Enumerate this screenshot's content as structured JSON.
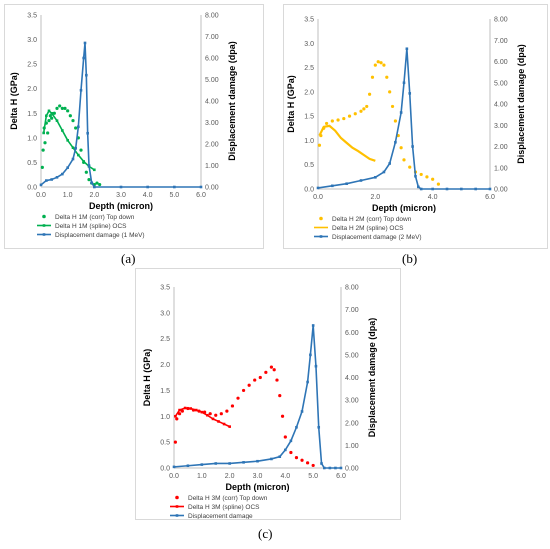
{
  "captions": [
    "(a)",
    "(b)",
    "(c)"
  ],
  "chart_data": [
    {
      "type": "line",
      "panel": "a",
      "xlabel": "Depth (micron)",
      "ylabel": "Delta H (GPa)",
      "y2label": "Displacement damage (dpa)",
      "xlim": [
        0,
        6
      ],
      "ylim": [
        0,
        3.5
      ],
      "y2lim": [
        0,
        8
      ],
      "xticks": [
        "0.0",
        "1.0",
        "2.0",
        "3.0",
        "4.0",
        "5.0",
        "6.0"
      ],
      "yticks": [
        "0.0",
        "0.5",
        "1.0",
        "1.5",
        "2.0",
        "2.5",
        "3.0",
        "3.5"
      ],
      "y2ticks": [
        "0.00",
        "1.00",
        "2.00",
        "3.00",
        "4.00",
        "5.00",
        "6.00",
        "7.00",
        "8.00"
      ],
      "grid": false,
      "legend_position": "bottom-left",
      "series": [
        {
          "name": "Delta H 1M (corr) Top down",
          "axis": "left",
          "style": "dots",
          "color": "#00b050",
          "points": [
            [
              0.05,
              0.4
            ],
            [
              0.08,
              0.75
            ],
            [
              0.12,
              1.2
            ],
            [
              0.15,
              0.9
            ],
            [
              0.2,
              1.3
            ],
            [
              0.25,
              1.1
            ],
            [
              0.3,
              1.35
            ],
            [
              0.35,
              1.45
            ],
            [
              0.4,
              1.4
            ],
            [
              0.5,
              1.5
            ],
            [
              0.6,
              1.6
            ],
            [
              0.7,
              1.65
            ],
            [
              0.8,
              1.6
            ],
            [
              0.9,
              1.6
            ],
            [
              1.0,
              1.55
            ],
            [
              1.1,
              1.45
            ],
            [
              1.2,
              1.35
            ],
            [
              1.3,
              1.2
            ],
            [
              1.4,
              1.0
            ],
            [
              1.5,
              0.75
            ],
            [
              1.6,
              0.5
            ],
            [
              1.7,
              0.3
            ],
            [
              1.8,
              0.15
            ],
            [
              1.9,
              0.08
            ],
            [
              2.0,
              0.05
            ],
            [
              2.1,
              0.08
            ],
            [
              2.2,
              0.05
            ]
          ]
        },
        {
          "name": "Delta H 1M (spline) OCS",
          "axis": "left",
          "style": "line-markers",
          "color": "#00b050",
          "points": [
            [
              0.1,
              1.1
            ],
            [
              0.2,
              1.45
            ],
            [
              0.3,
              1.55
            ],
            [
              0.4,
              1.5
            ],
            [
              0.6,
              1.35
            ],
            [
              0.8,
              1.15
            ],
            [
              1.0,
              0.95
            ],
            [
              1.2,
              0.8
            ],
            [
              1.4,
              0.65
            ],
            [
              1.6,
              0.52
            ],
            [
              1.8,
              0.42
            ],
            [
              2.0,
              0.35
            ]
          ]
        },
        {
          "name": "Displacement damage (1 MeV)",
          "axis": "right",
          "style": "line-markers",
          "color": "#2e75b6",
          "points": [
            [
              0.0,
              0.1
            ],
            [
              0.2,
              0.3
            ],
            [
              0.4,
              0.35
            ],
            [
              0.6,
              0.45
            ],
            [
              0.8,
              0.6
            ],
            [
              1.0,
              0.9
            ],
            [
              1.2,
              1.3
            ],
            [
              1.3,
              1.8
            ],
            [
              1.4,
              2.8
            ],
            [
              1.5,
              4.5
            ],
            [
              1.6,
              6.0
            ],
            [
              1.65,
              6.7
            ],
            [
              1.7,
              5.2
            ],
            [
              1.75,
              2.5
            ],
            [
              1.8,
              1.0
            ],
            [
              1.9,
              0.2
            ],
            [
              2.0,
              0.0
            ],
            [
              3.0,
              0.0
            ],
            [
              4.0,
              0.0
            ],
            [
              5.0,
              0.0
            ],
            [
              6.0,
              0.0
            ]
          ]
        }
      ]
    },
    {
      "type": "line",
      "panel": "b",
      "xlabel": "Depth (micron)",
      "ylabel": "Delta H (GPa)",
      "y2label": "Displacement damage (dpa)",
      "xlim": [
        0,
        6
      ],
      "ylim": [
        0,
        3.5
      ],
      "y2lim": [
        0,
        8
      ],
      "xticks": [
        "0.0",
        "2.0",
        "4.0",
        "6.0"
      ],
      "yticks": [
        "0.0",
        "0.5",
        "1.0",
        "1.5",
        "2.0",
        "2.5",
        "3.0",
        "3.5"
      ],
      "y2ticks": [
        "0.00",
        "1.00",
        "2.00",
        "3.00",
        "4.00",
        "5.00",
        "6.00",
        "7.00",
        "8.00"
      ],
      "grid": false,
      "legend_position": "bottom-left",
      "series": [
        {
          "name": "Delta H 2M (corr)  Top down",
          "axis": "left",
          "style": "dots",
          "color": "#ffc000",
          "points": [
            [
              0.05,
              0.9
            ],
            [
              0.1,
              1.1
            ],
            [
              0.2,
              1.25
            ],
            [
              0.3,
              1.35
            ],
            [
              0.5,
              1.4
            ],
            [
              0.7,
              1.42
            ],
            [
              0.9,
              1.45
            ],
            [
              1.1,
              1.5
            ],
            [
              1.3,
              1.55
            ],
            [
              1.5,
              1.6
            ],
            [
              1.6,
              1.65
            ],
            [
              1.7,
              1.7
            ],
            [
              1.8,
              1.95
            ],
            [
              1.9,
              2.3
            ],
            [
              2.0,
              2.55
            ],
            [
              2.1,
              2.62
            ],
            [
              2.2,
              2.6
            ],
            [
              2.3,
              2.55
            ],
            [
              2.4,
              2.3
            ],
            [
              2.5,
              2.0
            ],
            [
              2.6,
              1.7
            ],
            [
              2.7,
              1.4
            ],
            [
              2.8,
              1.1
            ],
            [
              2.9,
              0.85
            ],
            [
              3.0,
              0.6
            ],
            [
              3.2,
              0.45
            ],
            [
              3.4,
              0.35
            ],
            [
              3.6,
              0.3
            ],
            [
              3.8,
              0.25
            ],
            [
              4.0,
              0.2
            ],
            [
              4.2,
              0.1
            ]
          ]
        },
        {
          "name": "Delta H 2M (spline)  OCS",
          "axis": "left",
          "style": "line",
          "color": "#ffc000",
          "points": [
            [
              0.05,
              1.1
            ],
            [
              0.2,
              1.28
            ],
            [
              0.4,
              1.3
            ],
            [
              0.6,
              1.2
            ],
            [
              0.8,
              1.05
            ],
            [
              1.0,
              0.95
            ],
            [
              1.2,
              0.85
            ],
            [
              1.4,
              0.78
            ],
            [
              1.6,
              0.7
            ],
            [
              1.8,
              0.62
            ],
            [
              2.0,
              0.58
            ]
          ]
        },
        {
          "name": "Displacement damage (2 MeV)",
          "axis": "right",
          "style": "line-markers",
          "color": "#2e75b6",
          "points": [
            [
              0.0,
              0.05
            ],
            [
              0.5,
              0.15
            ],
            [
              1.0,
              0.25
            ],
            [
              1.5,
              0.4
            ],
            [
              2.0,
              0.55
            ],
            [
              2.3,
              0.8
            ],
            [
              2.5,
              1.2
            ],
            [
              2.7,
              2.2
            ],
            [
              2.9,
              3.6
            ],
            [
              3.0,
              5.0
            ],
            [
              3.1,
              6.6
            ],
            [
              3.2,
              4.5
            ],
            [
              3.3,
              2.0
            ],
            [
              3.4,
              0.6
            ],
            [
              3.5,
              0.1
            ],
            [
              3.6,
              0.0
            ],
            [
              4.0,
              0.0
            ],
            [
              4.5,
              0.0
            ],
            [
              5.0,
              0.0
            ],
            [
              5.5,
              0.0
            ],
            [
              6.0,
              0.0
            ]
          ]
        }
      ]
    },
    {
      "type": "line",
      "panel": "c",
      "xlabel": "Depth (micron)",
      "ylabel": "Delta H (GPa)",
      "y2label": "Displacement damage (dpa)",
      "xlim": [
        0,
        6
      ],
      "ylim": [
        0,
        3.5
      ],
      "y2lim": [
        0,
        8
      ],
      "xticks": [
        "0.0",
        "1.0",
        "2.0",
        "3.0",
        "4.0",
        "5.0",
        "6.0"
      ],
      "yticks": [
        "0.0",
        "0.5",
        "1.0",
        "1.5",
        "2.0",
        "2.5",
        "3.0",
        "3.5"
      ],
      "y2ticks": [
        "0.00",
        "1.00",
        "2.00",
        "3.00",
        "4.00",
        "5.00",
        "6.00",
        "7.00",
        "8.00"
      ],
      "grid": false,
      "legend_position": "bottom-left",
      "series": [
        {
          "name": "Delta H 3M (corr) Top down",
          "axis": "left",
          "style": "dots",
          "color": "#ff0000",
          "points": [
            [
              0.05,
              0.5
            ],
            [
              0.1,
              0.95
            ],
            [
              0.2,
              1.05
            ],
            [
              0.3,
              1.1
            ],
            [
              0.5,
              1.15
            ],
            [
              0.7,
              1.12
            ],
            [
              0.9,
              1.1
            ],
            [
              1.1,
              1.08
            ],
            [
              1.3,
              1.05
            ],
            [
              1.5,
              1.02
            ],
            [
              1.7,
              1.05
            ],
            [
              1.9,
              1.1
            ],
            [
              2.1,
              1.2
            ],
            [
              2.3,
              1.35
            ],
            [
              2.5,
              1.5
            ],
            [
              2.7,
              1.6
            ],
            [
              2.9,
              1.7
            ],
            [
              3.1,
              1.75
            ],
            [
              3.3,
              1.85
            ],
            [
              3.5,
              1.95
            ],
            [
              3.6,
              1.9
            ],
            [
              3.7,
              1.7
            ],
            [
              3.8,
              1.4
            ],
            [
              3.9,
              1.0
            ],
            [
              4.0,
              0.6
            ],
            [
              4.2,
              0.3
            ],
            [
              4.4,
              0.2
            ],
            [
              4.6,
              0.15
            ],
            [
              4.8,
              0.1
            ],
            [
              5.0,
              0.05
            ]
          ]
        },
        {
          "name": "Delta H 3M (spline) OCS",
          "axis": "left",
          "style": "line-markers",
          "color": "#ff0000",
          "points": [
            [
              0.05,
              1.0
            ],
            [
              0.2,
              1.12
            ],
            [
              0.4,
              1.16
            ],
            [
              0.6,
              1.15
            ],
            [
              0.8,
              1.12
            ],
            [
              1.0,
              1.08
            ],
            [
              1.2,
              1.02
            ],
            [
              1.4,
              0.95
            ],
            [
              1.6,
              0.9
            ],
            [
              1.8,
              0.85
            ],
            [
              2.0,
              0.8
            ]
          ]
        },
        {
          "name": "Displacement damage",
          "axis": "right",
          "style": "line-markers",
          "color": "#2e75b6",
          "points": [
            [
              0.0,
              0.05
            ],
            [
              0.5,
              0.1
            ],
            [
              1.0,
              0.15
            ],
            [
              1.5,
              0.2
            ],
            [
              2.0,
              0.2
            ],
            [
              2.5,
              0.25
            ],
            [
              3.0,
              0.3
            ],
            [
              3.5,
              0.4
            ],
            [
              3.8,
              0.5
            ],
            [
              4.0,
              0.8
            ],
            [
              4.2,
              1.2
            ],
            [
              4.4,
              1.8
            ],
            [
              4.6,
              2.5
            ],
            [
              4.8,
              3.8
            ],
            [
              4.9,
              5.0
            ],
            [
              5.0,
              6.3
            ],
            [
              5.1,
              4.5
            ],
            [
              5.2,
              1.8
            ],
            [
              5.3,
              0.2
            ],
            [
              5.4,
              0.0
            ],
            [
              5.6,
              0.0
            ],
            [
              5.8,
              0.0
            ],
            [
              6.0,
              0.0
            ]
          ]
        }
      ]
    }
  ]
}
